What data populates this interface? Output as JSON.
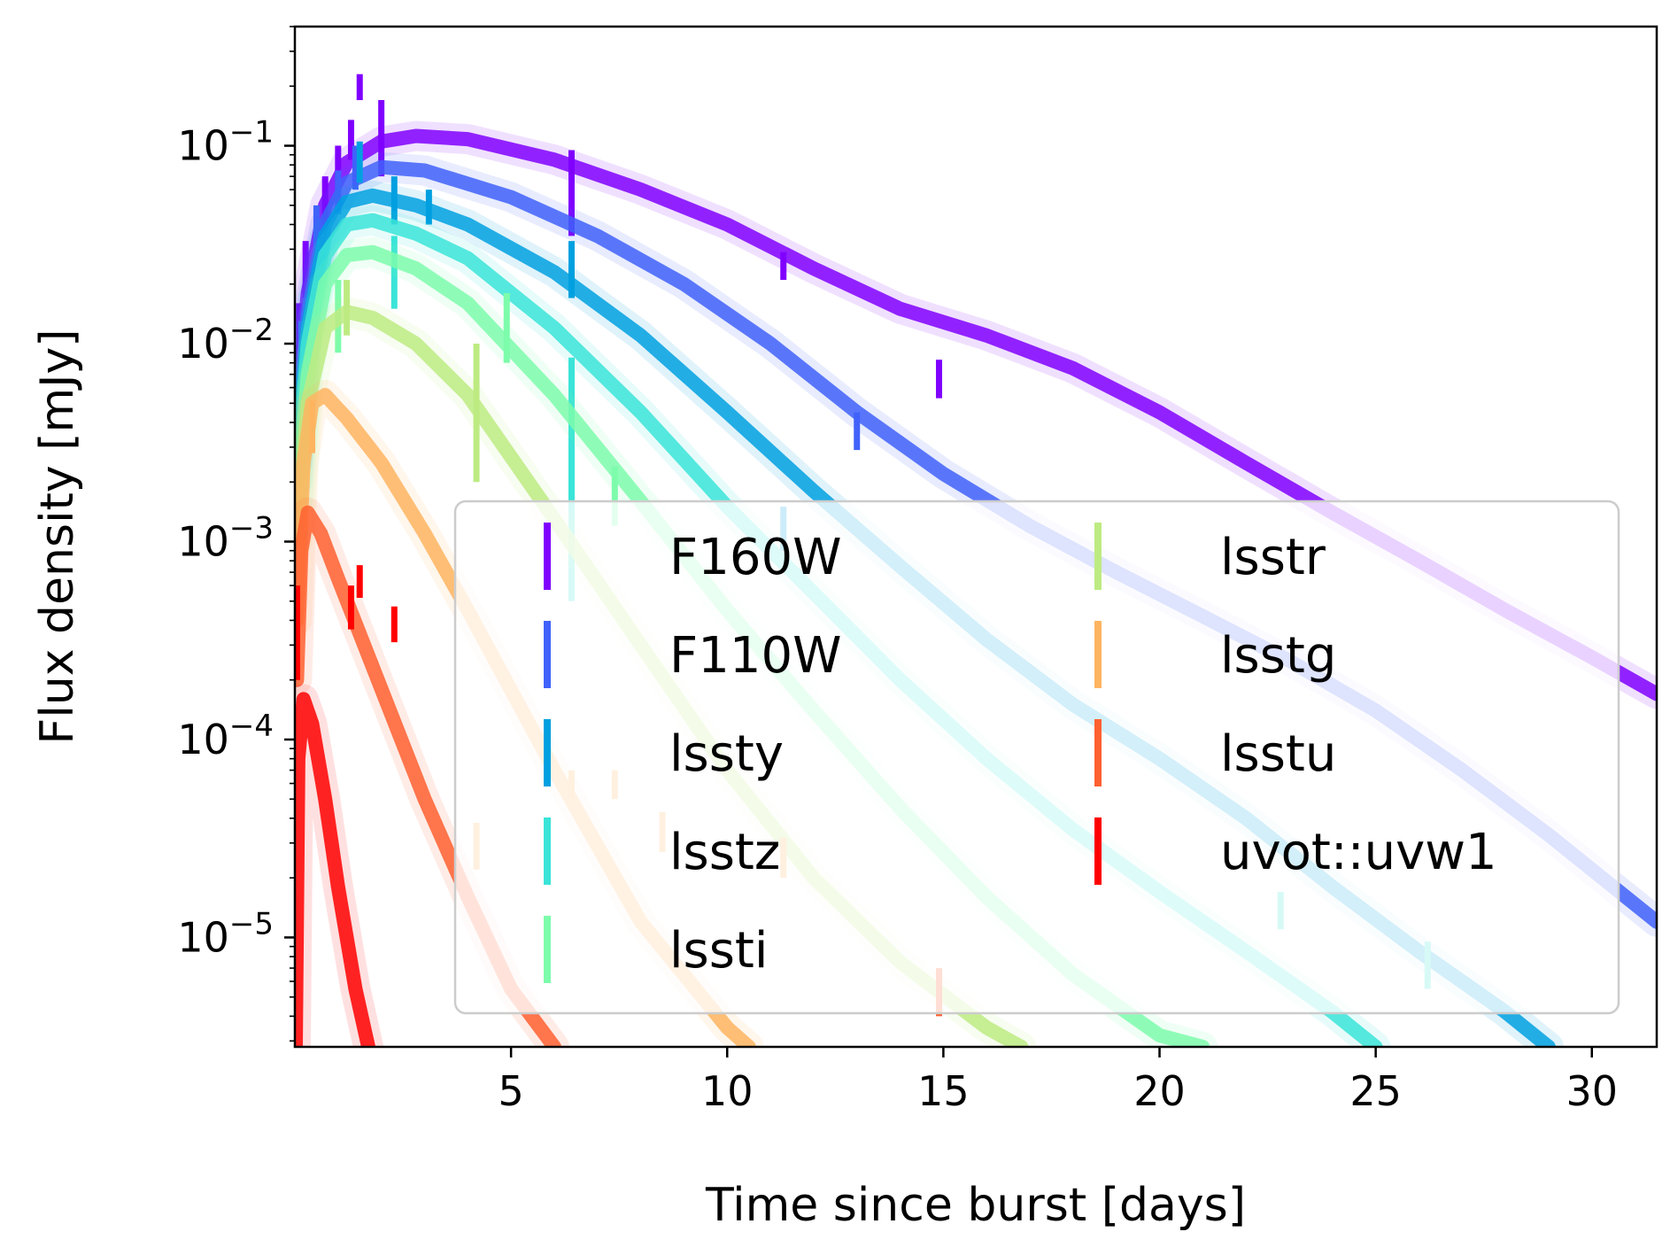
{
  "chart_data": {
    "type": "line",
    "xlabel": "Time since burst [days]",
    "ylabel": "Flux density [mJy]",
    "xscale": "linear",
    "yscale": "log",
    "xlim": [
      0,
      31.5
    ],
    "ylim": [
      2.8e-06,
      0.4
    ],
    "xticks": [
      5,
      10,
      15,
      20,
      25,
      30
    ],
    "xtick_labels": [
      "5",
      "10",
      "15",
      "20",
      "25",
      "30"
    ],
    "yticks": [
      {
        "value": 0.1,
        "base": "10",
        "exp": "−1"
      },
      {
        "value": 0.01,
        "base": "10",
        "exp": "−2"
      },
      {
        "value": 0.001,
        "base": "10",
        "exp": "−3"
      },
      {
        "value": 0.0001,
        "base": "10",
        "exp": "−4"
      },
      {
        "value": 1e-05,
        "base": "10",
        "exp": "−5"
      }
    ],
    "grid": false,
    "legend": {
      "placement": "lower-right",
      "columns": 2
    },
    "series": [
      {
        "name": "F160W",
        "color": "#8000ff",
        "model": [
          [
            0.05,
            0.0045
          ],
          [
            0.3,
            0.018
          ],
          [
            0.7,
            0.05
          ],
          [
            1.2,
            0.082
          ],
          [
            2,
            0.105
          ],
          [
            2.8,
            0.112
          ],
          [
            4,
            0.108
          ],
          [
            6,
            0.085
          ],
          [
            8,
            0.06
          ],
          [
            10,
            0.04
          ],
          [
            12,
            0.024
          ],
          [
            14,
            0.015
          ],
          [
            16,
            0.011
          ],
          [
            18,
            0.0075
          ],
          [
            20,
            0.0045
          ],
          [
            22,
            0.0025
          ],
          [
            24,
            0.0014
          ],
          [
            26,
            0.0008
          ],
          [
            28,
            0.00045
          ],
          [
            30,
            0.00026
          ],
          [
            31.5,
            0.00017
          ]
        ],
        "points": [
          [
            1.5,
            0.2,
            0.03
          ],
          [
            2,
            0.12,
            0.05
          ],
          [
            1.3,
            0.11,
            0.025
          ],
          [
            1.0,
            0.08,
            0.02
          ],
          [
            0.7,
            0.055,
            0.015
          ],
          [
            6.4,
            0.065,
            0.03
          ],
          [
            11.3,
            0.025,
            0.004
          ],
          [
            14.9,
            0.0068,
            0.0015
          ],
          [
            0.1,
            0.012,
            0.004
          ],
          [
            0.25,
            0.025,
            0.008
          ]
        ]
      },
      {
        "name": "F110W",
        "color": "#4062fa",
        "model": [
          [
            0.05,
            0.003
          ],
          [
            0.3,
            0.014
          ],
          [
            0.7,
            0.04
          ],
          [
            1.2,
            0.065
          ],
          [
            2,
            0.078
          ],
          [
            3,
            0.075
          ],
          [
            5,
            0.055
          ],
          [
            7,
            0.035
          ],
          [
            9,
            0.02
          ],
          [
            11,
            0.01
          ],
          [
            13,
            0.0045
          ],
          [
            15,
            0.0022
          ],
          [
            17,
            0.0012
          ],
          [
            19,
            0.0007
          ],
          [
            21,
            0.00042
          ],
          [
            23,
            0.00025
          ],
          [
            25,
            0.00014
          ],
          [
            27,
            7e-05
          ],
          [
            29,
            3.3e-05
          ],
          [
            31.5,
            1.2e-05
          ]
        ],
        "points": [
          [
            1.4,
            0.08,
            0.02
          ],
          [
            1.0,
            0.06,
            0.015
          ],
          [
            0.5,
            0.04,
            0.01
          ],
          [
            13,
            0.0037,
            0.0008
          ],
          [
            0.15,
            0.01,
            0.003
          ]
        ]
      },
      {
        "name": "lssty",
        "color": "#00a0e0",
        "model": [
          [
            0.05,
            0.0025
          ],
          [
            0.3,
            0.012
          ],
          [
            0.7,
            0.035
          ],
          [
            1.2,
            0.052
          ],
          [
            1.8,
            0.056
          ],
          [
            2.8,
            0.05
          ],
          [
            4,
            0.04
          ],
          [
            6,
            0.023
          ],
          [
            8,
            0.011
          ],
          [
            10,
            0.0045
          ],
          [
            12,
            0.0018
          ],
          [
            14,
            0.00075
          ],
          [
            16,
            0.00032
          ],
          [
            18,
            0.00015
          ],
          [
            20,
            8e-05
          ],
          [
            22,
            4e-05
          ],
          [
            24,
            1.8e-05
          ],
          [
            26,
            8.5e-06
          ],
          [
            28,
            4.2e-06
          ],
          [
            29,
            2.8e-06
          ]
        ],
        "points": [
          [
            1.5,
            0.085,
            0.02
          ],
          [
            2.3,
            0.055,
            0.015
          ],
          [
            3.1,
            0.05,
            0.01
          ],
          [
            6.4,
            0.025,
            0.008
          ],
          [
            11.3,
            0.0012,
            0.0003
          ]
        ]
      },
      {
        "name": "lsstz",
        "color": "#3ae4d8",
        "model": [
          [
            0.05,
            0.002
          ],
          [
            0.3,
            0.01
          ],
          [
            0.7,
            0.028
          ],
          [
            1.2,
            0.04
          ],
          [
            1.8,
            0.042
          ],
          [
            2.8,
            0.036
          ],
          [
            4,
            0.027
          ],
          [
            6,
            0.012
          ],
          [
            8,
            0.0045
          ],
          [
            10,
            0.0015
          ],
          [
            12,
            0.00055
          ],
          [
            14,
            0.0002
          ],
          [
            16,
            8e-05
          ],
          [
            18,
            3.5e-05
          ],
          [
            20,
            1.7e-05
          ],
          [
            22,
            8.5e-06
          ],
          [
            24,
            4.2e-06
          ],
          [
            25,
            2.8e-06
          ]
        ],
        "points": [
          [
            2.3,
            0.025,
            0.01
          ],
          [
            6.4,
            0.0045,
            0.004
          ],
          [
            22.8,
            1.4e-05,
            3e-06
          ],
          [
            26.2,
            7.5e-06,
            2e-06
          ]
        ]
      },
      {
        "name": "lssti",
        "color": "#7dfcab",
        "model": [
          [
            0.05,
            0.0015
          ],
          [
            0.3,
            0.007
          ],
          [
            0.7,
            0.02
          ],
          [
            1.2,
            0.028
          ],
          [
            1.8,
            0.029
          ],
          [
            2.8,
            0.024
          ],
          [
            4,
            0.016
          ],
          [
            6,
            0.0055
          ],
          [
            8,
            0.0016
          ],
          [
            10,
            0.00045
          ],
          [
            12,
            0.00014
          ],
          [
            14,
            4.5e-05
          ],
          [
            16,
            1.6e-05
          ],
          [
            18,
            6.5e-06
          ],
          [
            20,
            3.2e-06
          ],
          [
            21,
            2.8e-06
          ]
        ],
        "points": [
          [
            1.0,
            0.015,
            0.006
          ],
          [
            4.9,
            0.013,
            0.005
          ],
          [
            7.4,
            0.0018,
            0.0006
          ]
        ]
      },
      {
        "name": "lsstr",
        "color": "#bdeb82",
        "model": [
          [
            0.05,
            0.001
          ],
          [
            0.3,
            0.005
          ],
          [
            0.7,
            0.012
          ],
          [
            1.2,
            0.0145
          ],
          [
            1.8,
            0.0135
          ],
          [
            2.8,
            0.01
          ],
          [
            4,
            0.0055
          ],
          [
            6,
            0.0013
          ],
          [
            8,
            0.0003
          ],
          [
            10,
            7e-05
          ],
          [
            12,
            2e-05
          ],
          [
            14,
            7.5e-06
          ],
          [
            16,
            3.5e-06
          ],
          [
            16.8,
            2.8e-06
          ]
        ],
        "points": [
          [
            1.2,
            0.016,
            0.005
          ],
          [
            4.2,
            0.006,
            0.004
          ]
        ]
      },
      {
        "name": "lsstg",
        "color": "#ffb460",
        "model": [
          [
            0.05,
            0.0004
          ],
          [
            0.2,
            0.0025
          ],
          [
            0.4,
            0.005
          ],
          [
            0.7,
            0.0055
          ],
          [
            1.2,
            0.0042
          ],
          [
            2,
            0.0025
          ],
          [
            3,
            0.0011
          ],
          [
            4,
            0.00045
          ],
          [
            6,
            7e-05
          ],
          [
            8,
            1.2e-05
          ],
          [
            10,
            3.5e-06
          ],
          [
            10.5,
            2.8e-06
          ]
        ],
        "points": [
          [
            0.4,
            0.004,
            0.0012
          ],
          [
            4.2,
            3e-05,
            8e-06
          ],
          [
            6.4,
            6e-05,
            1e-05
          ],
          [
            7.4,
            6e-05,
            1e-05
          ],
          [
            8.5,
            3.5e-05,
            8e-06
          ],
          [
            11.3,
            2.6e-05,
            6e-06
          ]
        ]
      },
      {
        "name": "lsstu",
        "color": "#ff6030",
        "model": [
          [
            0.05,
            0.0002
          ],
          [
            0.15,
            0.0009
          ],
          [
            0.3,
            0.0014
          ],
          [
            0.6,
            0.0011
          ],
          [
            1,
            0.00065
          ],
          [
            2,
            0.00018
          ],
          [
            3,
            5e-05
          ],
          [
            4,
            1.6e-05
          ],
          [
            5,
            5.5e-06
          ],
          [
            6,
            2.8e-06
          ]
        ],
        "points": [
          [
            14.9,
            5.5e-06,
            1.5e-06
          ]
        ]
      },
      {
        "name": "uvot::uvw1",
        "color": "#ff0000",
        "model": [
          [
            0.02,
            2.8e-06
          ],
          [
            0.08,
            8e-05
          ],
          [
            0.2,
            0.00016
          ],
          [
            0.4,
            0.00012
          ],
          [
            0.7,
            5e-05
          ],
          [
            1,
            1.8e-05
          ],
          [
            1.4,
            5.5e-06
          ],
          [
            1.7,
            2.8e-06
          ]
        ],
        "points": [
          [
            1.3,
            0.00048,
            0.00012
          ],
          [
            1.5,
            0.00064,
            0.00012
          ],
          [
            2.3,
            0.00039,
            8e-05
          ],
          [
            0.05,
            0.0004,
            0.0002
          ]
        ]
      }
    ]
  }
}
